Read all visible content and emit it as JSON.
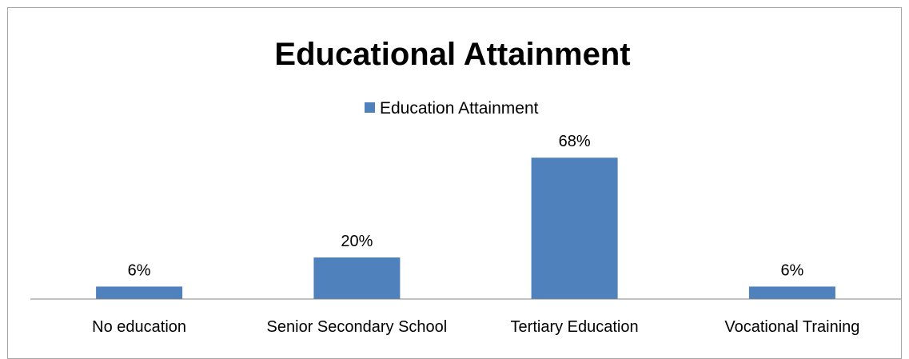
{
  "chart_data": {
    "type": "bar",
    "title": "Educational Attainment",
    "categories": [
      "No education",
      "Senior Secondary School",
      "Tertiary Education",
      "Vocational Training"
    ],
    "series": [
      {
        "name": "Education Attainment",
        "values": [
          6,
          20,
          68,
          6
        ],
        "labels": [
          "6%",
          "20%",
          "68%",
          "6%"
        ]
      }
    ],
    "xlabel": "",
    "ylabel": "",
    "ylim": [
      0,
      80
    ],
    "grid": false,
    "legend_position": "top",
    "colors": {
      "bar": "#4f81bd",
      "axis": "#868686"
    }
  }
}
